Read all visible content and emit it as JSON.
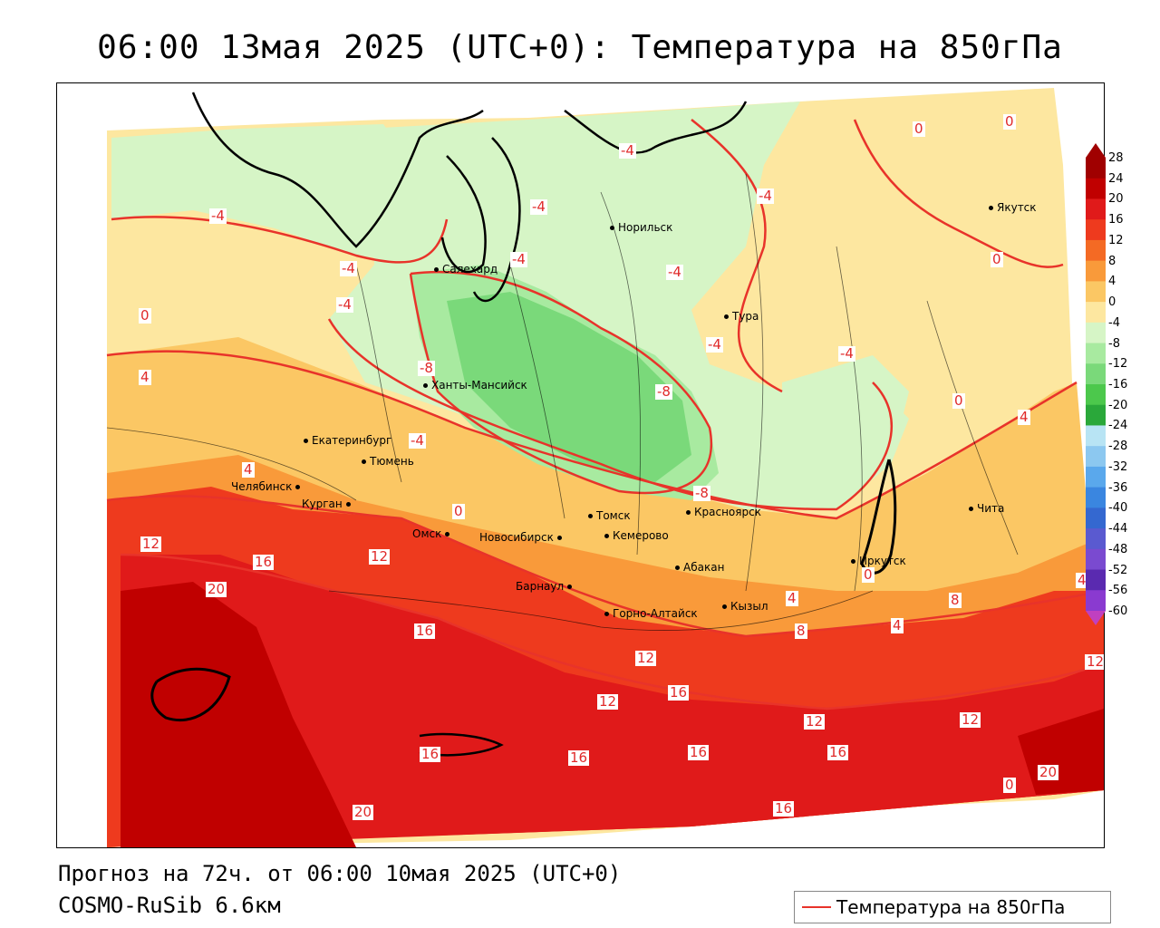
{
  "title": "06:00 13мая 2025 (UTC+0): Температура на 850гПа",
  "footer": {
    "forecast": "Прогноз на 72ч. от 06:00 10мая 2025 (UTC+0)",
    "model": "COSMO-RuSib 6.6км"
  },
  "legend": {
    "label": "Температура на 850гПа",
    "line_color": "#e8332a"
  },
  "colorbar": {
    "levels": [
      "28",
      "24",
      "20",
      "16",
      "12",
      "8",
      "4",
      "0",
      "-4",
      "-8",
      "-12",
      "-16",
      "-20",
      "-24",
      "-28",
      "-32",
      "-36",
      "-40",
      "-44",
      "-48",
      "-52",
      "-56",
      "-60"
    ],
    "colors": [
      "#a00000",
      "#c00000",
      "#e01a1a",
      "#ee3a1e",
      "#f46a24",
      "#f99a3a",
      "#fbc764",
      "#fde7a0",
      "#d6f5c6",
      "#a8eaa0",
      "#7ad97a",
      "#4cc84c",
      "#2aa83a",
      "#b8e4f4",
      "#8cc8f0",
      "#5aa8ec",
      "#3a86e0",
      "#3468d0",
      "#5a5ad0",
      "#7a4ad0",
      "#5a2ab0",
      "#8a3ad0",
      "#c040c0"
    ]
  },
  "cities": [
    {
      "name": "Норильск"
    },
    {
      "name": "Салехард"
    },
    {
      "name": "Якутск"
    },
    {
      "name": "Тура"
    },
    {
      "name": "Ханты-Мансийск"
    },
    {
      "name": "Екатеринбург"
    },
    {
      "name": "Тюмень"
    },
    {
      "name": "Челябинск"
    },
    {
      "name": "Курган"
    },
    {
      "name": "Омск"
    },
    {
      "name": "Новосибирск"
    },
    {
      "name": "Томск"
    },
    {
      "name": "Кемерово"
    },
    {
      "name": "Красноярск"
    },
    {
      "name": "Абакан"
    },
    {
      "name": "Барнаул"
    },
    {
      "name": "Горно-Алтайск"
    },
    {
      "name": "Кызыл"
    },
    {
      "name": "Иркутск"
    },
    {
      "name": "Чита"
    }
  ],
  "contour_labels": [
    "-4",
    "-4",
    "-4",
    "-4",
    "-4",
    "-4",
    "-4",
    "-4",
    "-4",
    "-4",
    "-4",
    "-8",
    "-8",
    "-8",
    "0",
    "0",
    "0",
    "0",
    "0",
    "0",
    "4",
    "4",
    "4",
    "4",
    "4",
    "4",
    "8",
    "8",
    "12",
    "12",
    "12",
    "12",
    "12",
    "12",
    "12",
    "16",
    "16",
    "16",
    "16",
    "16",
    "16",
    "16",
    "16",
    "20",
    "20",
    "20",
    "0",
    "0"
  ]
}
